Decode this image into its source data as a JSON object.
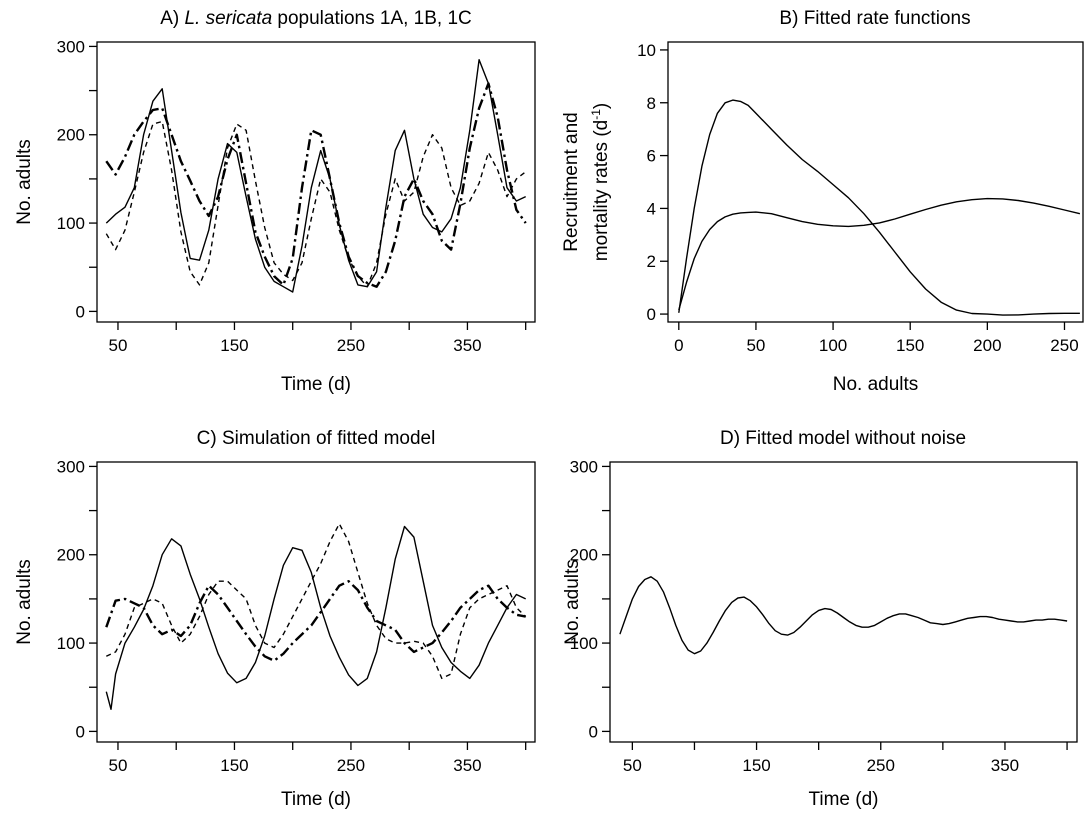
{
  "chart_data": [
    {
      "id": "A",
      "type": "line",
      "title_prefix": "A) ",
      "title_italic": "L. sericata",
      "title_suffix": " populations 1A, 1B, 1C",
      "xlabel": "Time (d)",
      "ylabel": "No. adults",
      "xlim": [
        32,
        408
      ],
      "ylim": [
        -12,
        305
      ],
      "x_ticks": [
        50,
        100,
        150,
        200,
        250,
        300,
        350,
        400
      ],
      "x_tick_labels": [
        "50",
        "",
        "150",
        "",
        "250",
        "",
        "350",
        ""
      ],
      "y_ticks": [
        0,
        50,
        100,
        150,
        200,
        250,
        300
      ],
      "y_tick_labels": [
        "0",
        "",
        "100",
        "",
        "200",
        "",
        "300"
      ],
      "series": [
        {
          "style": "solid",
          "x": [
            40,
            48,
            56,
            64,
            72,
            80,
            88,
            96,
            104,
            112,
            120,
            128,
            136,
            144,
            152,
            160,
            168,
            176,
            184,
            192,
            200,
            208,
            216,
            224,
            232,
            240,
            248,
            256,
            264,
            272,
            280,
            288,
            296,
            304,
            312,
            320,
            328,
            336,
            344,
            352,
            360,
            368,
            376,
            384,
            392,
            400
          ],
          "y": [
            100,
            110,
            118,
            140,
            200,
            238,
            252,
            182,
            112,
            60,
            58,
            92,
            150,
            190,
            180,
            130,
            82,
            50,
            34,
            28,
            22,
            74,
            140,
            182,
            150,
            98,
            58,
            30,
            28,
            45,
            118,
            182,
            205,
            150,
            110,
            95,
            90,
            105,
            140,
            205,
            285,
            258,
            200,
            140,
            125,
            130
          ]
        },
        {
          "style": "dashdot",
          "x": [
            40,
            48,
            56,
            64,
            72,
            80,
            88,
            96,
            104,
            112,
            120,
            128,
            136,
            144,
            152,
            160,
            168,
            176,
            184,
            192,
            200,
            208,
            216,
            224,
            232,
            240,
            248,
            256,
            264,
            272,
            280,
            288,
            296,
            304,
            312,
            320,
            328,
            336,
            344,
            352,
            360,
            368,
            376,
            384,
            392,
            400
          ],
          "y": [
            170,
            155,
            175,
            200,
            215,
            228,
            230,
            200,
            170,
            148,
            125,
            108,
            130,
            172,
            200,
            145,
            90,
            62,
            40,
            30,
            60,
            140,
            205,
            200,
            150,
            100,
            62,
            40,
            32,
            28,
            45,
            80,
            130,
            150,
            125,
            110,
            80,
            70,
            122,
            185,
            230,
            258,
            220,
            160,
            115,
            100
          ]
        },
        {
          "style": "dashed",
          "x": [
            40,
            48,
            56,
            64,
            72,
            80,
            88,
            96,
            104,
            112,
            120,
            128,
            136,
            144,
            152,
            160,
            168,
            176,
            184,
            192,
            200,
            208,
            216,
            224,
            232,
            240,
            248,
            256,
            264,
            272,
            280,
            288,
            296,
            304,
            312,
            320,
            328,
            336,
            344,
            352,
            360,
            368,
            376,
            384,
            392,
            400
          ],
          "y": [
            88,
            70,
            92,
            135,
            180,
            212,
            215,
            160,
            90,
            45,
            30,
            55,
            120,
            185,
            212,
            205,
            148,
            95,
            55,
            42,
            35,
            55,
            105,
            150,
            135,
            92,
            60,
            40,
            28,
            55,
            110,
            150,
            125,
            135,
            175,
            200,
            185,
            140,
            120,
            125,
            145,
            180,
            160,
            130,
            150,
            158
          ]
        }
      ]
    },
    {
      "id": "B",
      "type": "line",
      "title": "B) Fitted rate functions",
      "xlabel": "No. adults",
      "ylabel_line1": "Recruitment and",
      "ylabel_line2_prefix": "mortality rates (d",
      "ylabel_sup": "-1",
      "ylabel_line2_suffix": ")",
      "xlim": [
        -7,
        262
      ],
      "ylim": [
        -0.3,
        10.3
      ],
      "x_ticks": [
        0,
        50,
        100,
        150,
        200,
        250
      ],
      "x_tick_labels": [
        "0",
        "50",
        "100",
        "150",
        "200",
        "250"
      ],
      "y_ticks": [
        0,
        2,
        4,
        6,
        8,
        10
      ],
      "y_tick_labels": [
        "0",
        "2",
        "4",
        "6",
        "8",
        "10"
      ],
      "series": [
        {
          "style": "solid",
          "x": [
            0,
            5,
            10,
            15,
            20,
            25,
            30,
            35,
            40,
            45,
            50,
            60,
            70,
            80,
            90,
            100,
            110,
            120,
            130,
            140,
            150,
            160,
            170,
            180,
            190,
            200,
            210,
            220,
            230,
            240,
            250,
            260
          ],
          "y": [
            0.05,
            2.1,
            4.0,
            5.6,
            6.8,
            7.6,
            8.0,
            8.1,
            8.05,
            7.9,
            7.6,
            7.0,
            6.4,
            5.85,
            5.4,
            4.9,
            4.4,
            3.8,
            3.1,
            2.35,
            1.6,
            0.95,
            0.45,
            0.15,
            0.02,
            0.0,
            -0.04,
            -0.03,
            0.0,
            0.02,
            0.03,
            0.03
          ]
        },
        {
          "style": "solid",
          "x": [
            0,
            5,
            10,
            15,
            20,
            25,
            30,
            35,
            40,
            45,
            50,
            60,
            70,
            80,
            90,
            100,
            110,
            120,
            130,
            140,
            150,
            160,
            170,
            180,
            190,
            200,
            210,
            220,
            230,
            240,
            250,
            260
          ],
          "y": [
            0.15,
            1.2,
            2.1,
            2.75,
            3.2,
            3.5,
            3.68,
            3.78,
            3.83,
            3.85,
            3.86,
            3.8,
            3.65,
            3.5,
            3.4,
            3.34,
            3.32,
            3.36,
            3.45,
            3.6,
            3.78,
            3.96,
            4.12,
            4.25,
            4.33,
            4.37,
            4.36,
            4.3,
            4.2,
            4.08,
            3.94,
            3.8
          ]
        }
      ]
    },
    {
      "id": "C",
      "type": "line",
      "title": "C) Simulation of fitted model",
      "xlabel": "Time (d)",
      "ylabel": "No. adults",
      "xlim": [
        32,
        408
      ],
      "ylim": [
        -12,
        305
      ],
      "x_ticks": [
        50,
        100,
        150,
        200,
        250,
        300,
        350,
        400
      ],
      "x_tick_labels": [
        "50",
        "",
        "150",
        "",
        "250",
        "",
        "350",
        ""
      ],
      "y_ticks": [
        0,
        50,
        100,
        150,
        200,
        250,
        300
      ],
      "y_tick_labels": [
        "0",
        "",
        "100",
        "",
        "200",
        "",
        "300"
      ],
      "series": [
        {
          "style": "solid",
          "x": [
            40,
            44,
            48,
            56,
            64,
            72,
            80,
            88,
            96,
            104,
            112,
            120,
            128,
            136,
            144,
            152,
            160,
            168,
            176,
            184,
            192,
            200,
            208,
            216,
            224,
            232,
            240,
            248,
            256,
            264,
            272,
            280,
            288,
            296,
            304,
            312,
            320,
            328,
            336,
            344,
            352,
            360,
            368,
            376,
            384,
            392,
            400
          ],
          "y": [
            45,
            25,
            65,
            100,
            118,
            138,
            165,
            200,
            218,
            210,
            178,
            150,
            118,
            88,
            66,
            55,
            60,
            78,
            108,
            150,
            188,
            208,
            205,
            180,
            140,
            108,
            84,
            64,
            52,
            60,
            90,
            140,
            195,
            232,
            220,
            170,
            120,
            95,
            78,
            68,
            60,
            75,
            100,
            120,
            140,
            155,
            150
          ]
        },
        {
          "style": "dashdot",
          "x": [
            40,
            48,
            56,
            64,
            72,
            80,
            88,
            96,
            104,
            112,
            120,
            128,
            136,
            144,
            152,
            160,
            168,
            176,
            184,
            192,
            200,
            208,
            216,
            224,
            232,
            240,
            248,
            256,
            264,
            272,
            280,
            288,
            296,
            304,
            312,
            320,
            328,
            336,
            344,
            352,
            360,
            368,
            376,
            384,
            392,
            400
          ],
          "y": [
            118,
            148,
            150,
            145,
            140,
            120,
            110,
            115,
            108,
            120,
            145,
            165,
            155,
            140,
            125,
            110,
            96,
            85,
            80,
            88,
            100,
            110,
            120,
            135,
            150,
            165,
            170,
            160,
            140,
            125,
            120,
            115,
            100,
            90,
            95,
            100,
            112,
            125,
            140,
            150,
            160,
            165,
            150,
            140,
            132,
            130
          ]
        },
        {
          "style": "dashed",
          "x": [
            40,
            48,
            56,
            64,
            72,
            80,
            88,
            96,
            104,
            112,
            120,
            128,
            136,
            144,
            152,
            160,
            168,
            176,
            184,
            192,
            200,
            208,
            216,
            224,
            232,
            240,
            248,
            256,
            264,
            272,
            280,
            288,
            296,
            304,
            312,
            320,
            328,
            336,
            344,
            352,
            360,
            368,
            376,
            384,
            392,
            400
          ],
          "y": [
            85,
            90,
            110,
            140,
            145,
            150,
            145,
            120,
            100,
            110,
            130,
            155,
            170,
            170,
            160,
            150,
            120,
            100,
            95,
            110,
            130,
            150,
            170,
            190,
            215,
            235,
            215,
            180,
            145,
            120,
            105,
            100,
            100,
            102,
            100,
            85,
            60,
            65,
            110,
            140,
            150,
            155,
            160,
            165,
            140,
            130
          ]
        }
      ]
    },
    {
      "id": "D",
      "type": "line",
      "title": "D) Fitted model without noise",
      "xlabel": "Time (d)",
      "ylabel": "No. adults",
      "xlim": [
        32,
        408
      ],
      "ylim": [
        -12,
        305
      ],
      "x_ticks": [
        50,
        100,
        150,
        200,
        250,
        300,
        350,
        400
      ],
      "x_tick_labels": [
        "50",
        "",
        "150",
        "",
        "250",
        "",
        "350",
        ""
      ],
      "y_ticks": [
        0,
        50,
        100,
        150,
        200,
        250,
        300
      ],
      "y_tick_labels": [
        "0",
        "",
        "100",
        "",
        "200",
        "",
        "300"
      ],
      "series": [
        {
          "style": "solid",
          "x": [
            40,
            45,
            50,
            55,
            60,
            65,
            70,
            75,
            80,
            85,
            90,
            95,
            100,
            105,
            110,
            115,
            120,
            125,
            130,
            135,
            140,
            145,
            150,
            155,
            160,
            165,
            170,
            175,
            180,
            185,
            190,
            195,
            200,
            205,
            210,
            215,
            220,
            225,
            230,
            235,
            240,
            245,
            250,
            255,
            260,
            265,
            270,
            275,
            280,
            285,
            290,
            295,
            300,
            305,
            310,
            315,
            320,
            325,
            330,
            335,
            340,
            345,
            350,
            355,
            360,
            365,
            370,
            375,
            380,
            385,
            390,
            395,
            400
          ],
          "y": [
            110,
            130,
            150,
            164,
            172,
            175,
            170,
            158,
            140,
            120,
            103,
            92,
            88,
            91,
            100,
            112,
            125,
            137,
            146,
            151,
            152,
            148,
            141,
            132,
            122,
            114,
            110,
            109,
            112,
            118,
            125,
            132,
            137,
            139,
            138,
            134,
            129,
            124,
            120,
            118,
            118,
            120,
            124,
            128,
            131,
            133,
            133,
            131,
            129,
            126,
            123,
            122,
            121,
            122,
            124,
            126,
            128,
            129,
            130,
            130,
            129,
            127,
            126,
            125,
            124,
            124,
            125,
            126,
            126,
            127,
            127,
            126,
            125
          ]
        }
      ]
    }
  ]
}
